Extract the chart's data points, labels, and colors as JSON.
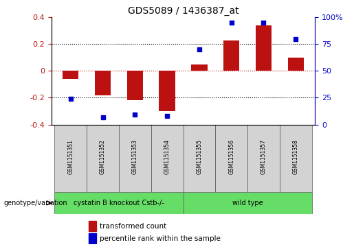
{
  "title": "GDS5089 / 1436387_at",
  "samples": [
    "GSM1151351",
    "GSM1151352",
    "GSM1151353",
    "GSM1151354",
    "GSM1151355",
    "GSM1151356",
    "GSM1151357",
    "GSM1151358"
  ],
  "transformed_count": [
    -0.06,
    -0.18,
    -0.22,
    -0.3,
    0.05,
    0.23,
    0.34,
    0.1
  ],
  "percentile_rank": [
    24,
    7,
    9,
    8,
    70,
    95,
    95,
    80
  ],
  "group_ranges": [
    [
      0,
      3,
      "cystatin B knockout Cstb-/-"
    ],
    [
      4,
      7,
      "wild type"
    ]
  ],
  "group_color": "#66dd66",
  "bar_color": "#bb1111",
  "dot_color": "#0000cc",
  "ylim_left": [
    -0.4,
    0.4
  ],
  "ylim_right": [
    0,
    100
  ],
  "yticks_left": [
    -0.4,
    -0.2,
    0.0,
    0.2,
    0.4
  ],
  "ytick_labels_left": [
    "-0.4",
    "-0.2",
    "0",
    "0.2",
    "0.4"
  ],
  "yticks_right": [
    0,
    25,
    50,
    75,
    100
  ],
  "ytick_labels_right": [
    "0",
    "25",
    "50",
    "75",
    "100%"
  ],
  "hline_dotted": [
    0.2,
    -0.2
  ],
  "hline_red_dot": 0.0,
  "legend_items": [
    {
      "color": "#bb1111",
      "label": "transformed count"
    },
    {
      "color": "#0000cc",
      "label": "percentile rank within the sample"
    }
  ],
  "genotype_label": "genotype/variation",
  "bar_width": 0.5
}
